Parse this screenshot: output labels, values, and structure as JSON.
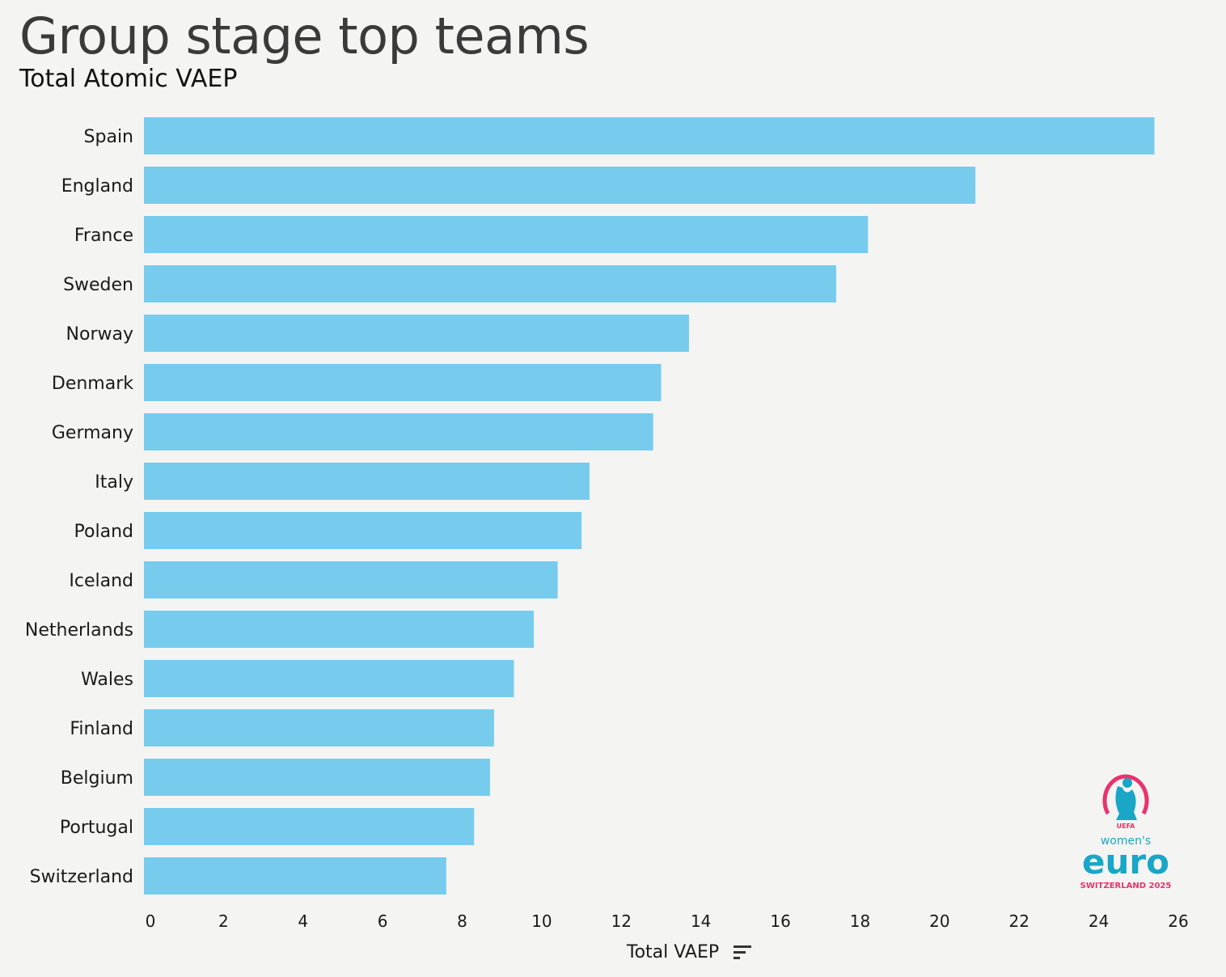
{
  "header": {
    "title": "Group stage top teams",
    "subtitle": "Total Atomic VAEP"
  },
  "chart_data": {
    "type": "bar",
    "orientation": "horizontal",
    "categories": [
      "Spain",
      "England",
      "France",
      "Sweden",
      "Norway",
      "Denmark",
      "Germany",
      "Italy",
      "Poland",
      "Iceland",
      "Netherlands",
      "Wales",
      "Finland",
      "Belgium",
      "Portugal",
      "Switzerland"
    ],
    "values": [
      25.4,
      20.9,
      18.2,
      17.4,
      13.7,
      13.0,
      12.8,
      11.2,
      11.0,
      10.4,
      9.8,
      9.3,
      8.8,
      8.7,
      8.3,
      7.6
    ],
    "xlabel": "Total VAEP",
    "ylabel": "",
    "xlim": [
      0,
      26
    ],
    "xticks": [
      "0",
      "2",
      "4",
      "6",
      "8",
      "10",
      "12",
      "14",
      "16",
      "18",
      "20",
      "22",
      "24",
      "26"
    ],
    "bar_color": "#77ccee",
    "grid": false,
    "sort_icon": "sort-descending-icon"
  },
  "logo": {
    "top_text": "UEFA",
    "middle_text": "women's",
    "main_text": "euro",
    "bottom_text": "SWITZERLAND 2025",
    "pink": "#e8336e",
    "teal": "#1aa6c6"
  }
}
